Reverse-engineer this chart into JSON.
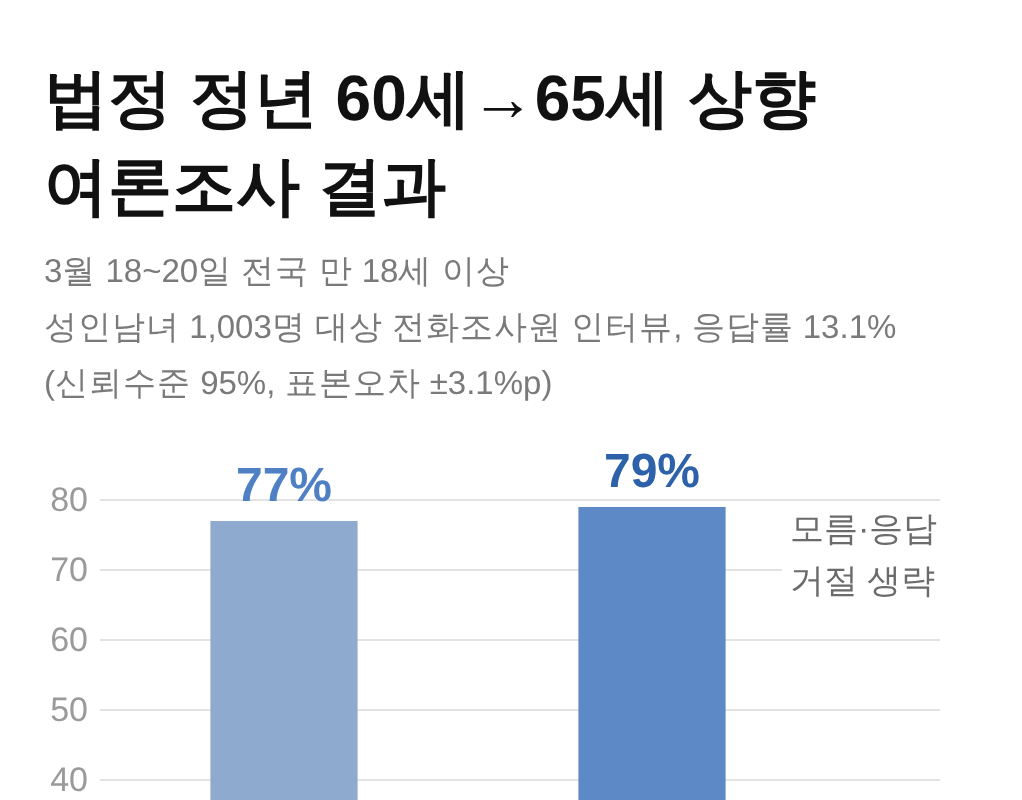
{
  "chart_data": {
    "type": "bar",
    "title": "법정 정년 60세→65세 상향\n여론조사 결과",
    "subtitle": "3월 18~20일 전국 만 18세 이상\n성인남녀 1,003명 대상 전화조사원 인터뷰, 응답률 13.1%\n(신뢰수준 95%, 표본오차 ±3.1%p)",
    "categories": [
      null,
      null
    ],
    "values": [
      77,
      79
    ],
    "colors": [
      "#8faacf",
      "#5d89c6"
    ],
    "value_labels": [
      "77%",
      "79%"
    ],
    "ylim": [
      37,
      80
    ],
    "yticks": [
      40,
      50,
      60,
      70,
      80
    ],
    "grid": "y",
    "annotations": [
      "모름·응답\n거절 생략"
    ]
  }
}
